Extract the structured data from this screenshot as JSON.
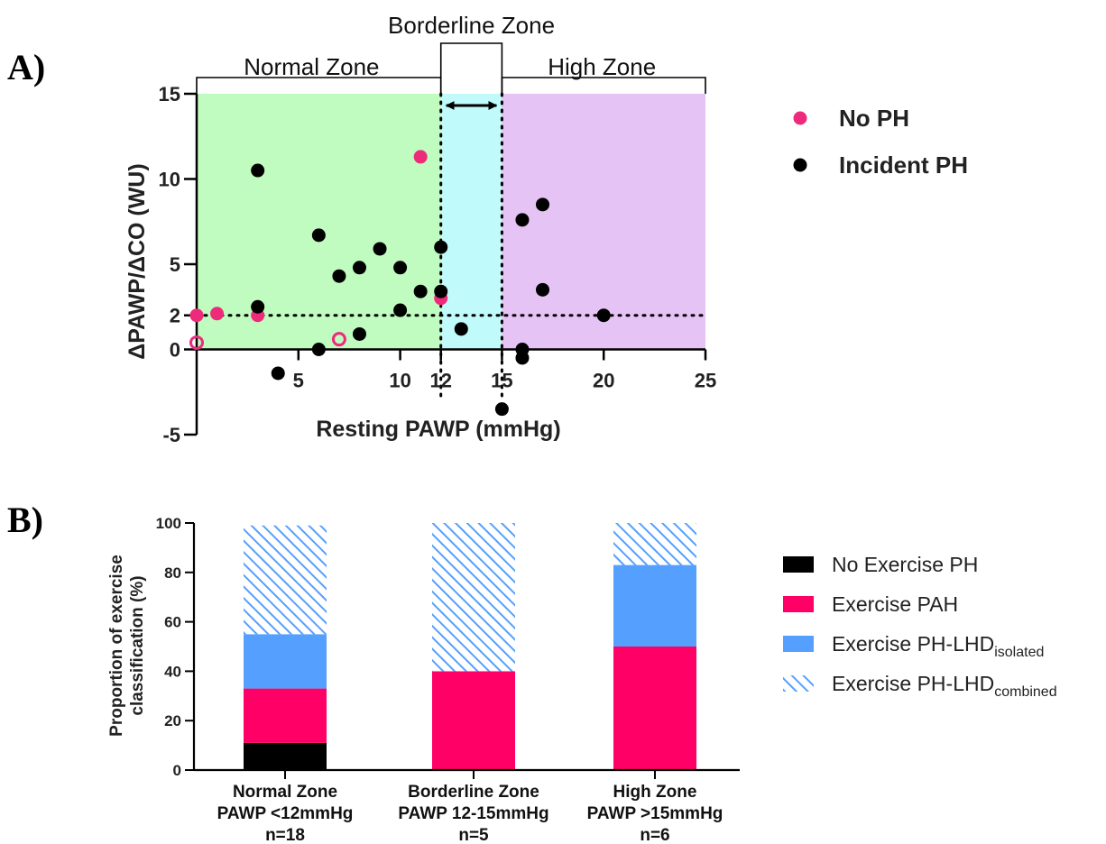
{
  "panel_labels": {
    "a": "A)",
    "b": "B)"
  },
  "chart_data": [
    {
      "type": "scatter",
      "title": "",
      "xlabel": "Resting PAWP (mmHg)",
      "ylabel": "ΔPAWP/ΔCO (WU)",
      "xlim": [
        0,
        25
      ],
      "ylim": [
        -5,
        15
      ],
      "xticks": [
        5,
        10,
        12,
        15,
        20,
        25
      ],
      "xtick_labels": [
        "5",
        "10",
        "12",
        "15",
        "20",
        "25"
      ],
      "yticks": [
        -5,
        0,
        2,
        5,
        10,
        15
      ],
      "ytick_labels": [
        "-5",
        "0",
        "2",
        "5",
        "10",
        "15"
      ],
      "zones": [
        {
          "label": "Normal Zone",
          "from": 0,
          "to": 12,
          "color": "#c0fcc0"
        },
        {
          "label": "Borderline Zone",
          "from": 12,
          "to": 15,
          "color": "#c0fafa"
        },
        {
          "label": "High Zone",
          "from": 15,
          "to": 25,
          "color": "#e6c3f5"
        }
      ],
      "reference_lines": {
        "y": 2,
        "x": [
          12,
          15
        ]
      },
      "grid": false,
      "legend_position": "right",
      "series": [
        {
          "name": "No PH",
          "color": "#ee2a7b",
          "marker": "filled",
          "points": [
            [
              0,
              2
            ],
            [
              1,
              2.1
            ],
            [
              3,
              2
            ],
            [
              11,
              11.3
            ],
            [
              12,
              3
            ]
          ]
        },
        {
          "name": "",
          "color": "#ee2a7b",
          "marker": "open",
          "points": [
            [
              0,
              0.4
            ],
            [
              7,
              0.6
            ]
          ]
        },
        {
          "name": "Incident PH",
          "color": "#000000",
          "marker": "filled",
          "points": [
            [
              3,
              10.5
            ],
            [
              3,
              2.5
            ],
            [
              4,
              -1.4
            ],
            [
              6,
              6.7
            ],
            [
              6,
              0
            ],
            [
              7,
              4.3
            ],
            [
              8,
              4.8
            ],
            [
              8,
              0.9
            ],
            [
              9,
              5.9
            ],
            [
              10,
              4.8
            ],
            [
              10,
              2.3
            ],
            [
              11,
              3.4
            ],
            [
              12,
              6
            ],
            [
              12,
              3.4
            ],
            [
              13,
              1.2
            ],
            [
              15,
              -3.5
            ],
            [
              16,
              7.6
            ],
            [
              16,
              0
            ],
            [
              16,
              -0.5
            ],
            [
              17,
              8.5
            ],
            [
              17,
              3.5
            ],
            [
              20,
              2
            ]
          ]
        }
      ]
    },
    {
      "type": "bar",
      "stacked": true,
      "title": "",
      "xlabel": "",
      "ylabel": "Proportion of exercise classification (%)",
      "ylabel_lines": [
        "Proportion of exercise",
        "classification (%)"
      ],
      "ylim": [
        0,
        100
      ],
      "yticks": [
        0,
        20,
        40,
        60,
        80,
        100
      ],
      "ytick_labels": [
        "0",
        "20",
        "40",
        "60",
        "80",
        "100"
      ],
      "categories": [
        [
          "Normal Zone",
          "PAWP <12mmHg",
          "n=18"
        ],
        [
          "Borderline Zone",
          "PAWP 12-15mmHg",
          "n=5"
        ],
        [
          "High Zone",
          "PAWP >15mmHg",
          "n=6"
        ]
      ],
      "legend_position": "right",
      "series": [
        {
          "name": "No Exercise PH",
          "base": "No Exercise PH",
          "sub": "",
          "color": "#000000",
          "pattern": "solid",
          "values": [
            11,
            0,
            0
          ]
        },
        {
          "name": "Exercise PAH",
          "base": "Exercise PAH",
          "sub": "",
          "color": "#ff0066",
          "pattern": "solid",
          "values": [
            22,
            40,
            50
          ]
        },
        {
          "name": "Exercise PH-LHDisolated",
          "base": "Exercise PH-LHD",
          "sub": "isolated",
          "color": "#55a0ff",
          "pattern": "solid",
          "values": [
            22,
            0,
            33
          ]
        },
        {
          "name": "Exercise PH-LHDcombined",
          "base": "Exercise PH-LHD",
          "sub": "combined",
          "color": "#55a0ff",
          "pattern": "hatch",
          "values": [
            44,
            60,
            17
          ]
        }
      ]
    }
  ]
}
